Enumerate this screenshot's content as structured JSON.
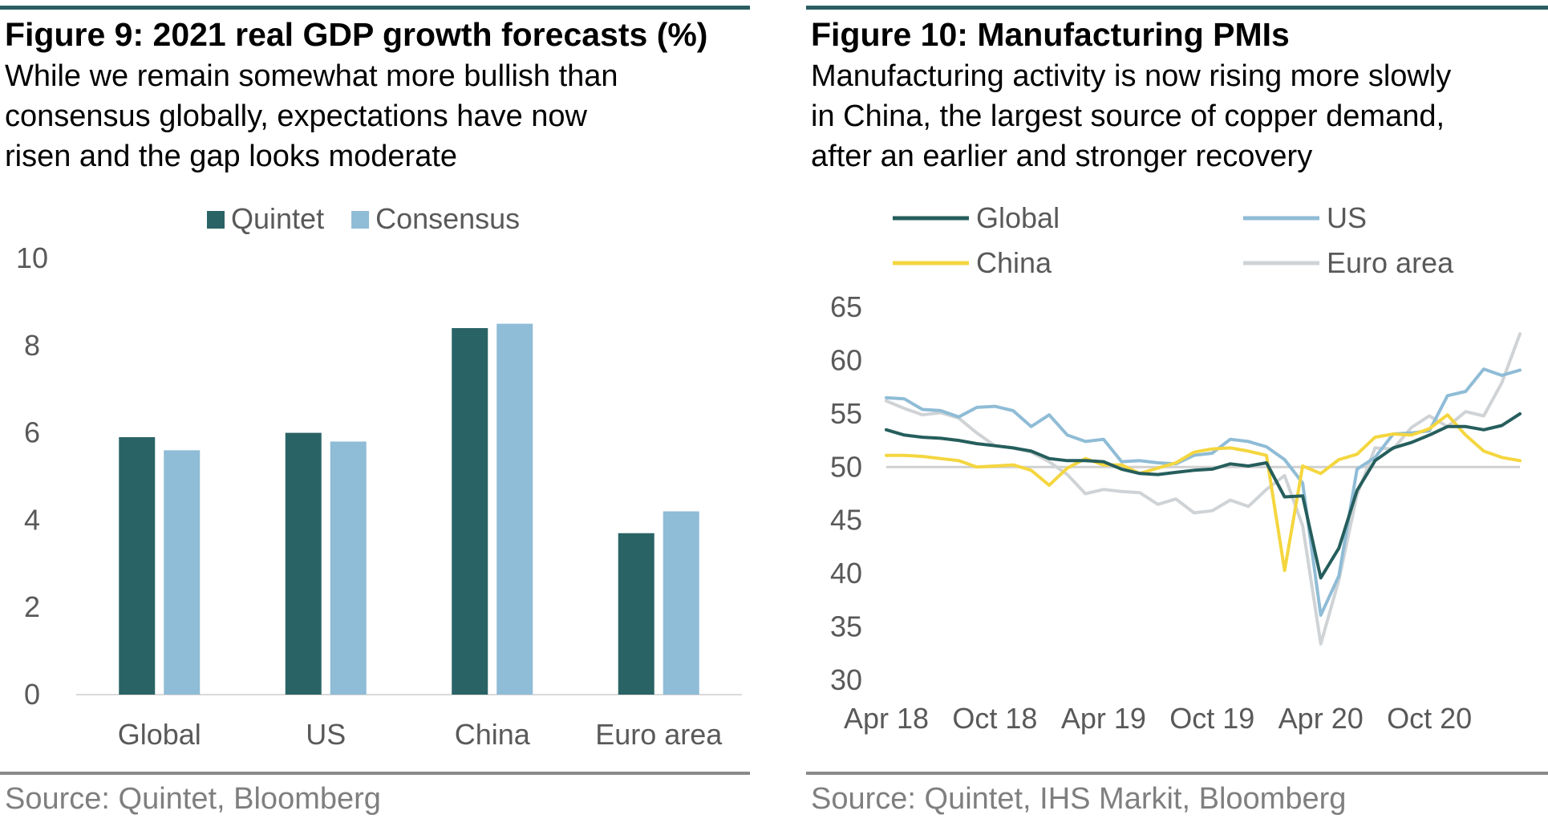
{
  "left": {
    "title": "Figure 9: 2021 real GDP growth forecasts (%)",
    "subtitle_lines": [
      "While we remain somewhat more bullish than",
      "consensus globally, expectations have now",
      "risen and the gap looks moderate"
    ],
    "source": "Source: Quintet, Bloomberg"
  },
  "right": {
    "title": "Figure 10: Manufacturing PMIs",
    "subtitle_lines": [
      "Manufacturing activity is now rising more slowly",
      "in China, the largest source of copper demand,",
      "after an earlier and stronger recovery"
    ],
    "source": "Source: Quintet, IHS Markit, Bloomberg"
  },
  "colors": {
    "quintet": "#2a6366",
    "consensus": "#8fbcd6",
    "global": "#255e5c",
    "us": "#8fbcd6",
    "china": "#f4d63f",
    "euro": "#cfd3d6",
    "axis": "#d9d9d9",
    "ref50": "#d0d0d0"
  },
  "chart_data": [
    {
      "type": "bar",
      "categories": [
        "Global",
        "US",
        "China",
        "Euro area"
      ],
      "series": [
        {
          "name": "Quintet",
          "values": [
            5.9,
            6.0,
            8.4,
            3.7
          ]
        },
        {
          "name": "Consensus",
          "values": [
            5.6,
            5.8,
            8.5,
            4.2
          ]
        }
      ],
      "yticks": [
        "10",
        "8",
        "6",
        "4",
        "2",
        "0"
      ],
      "ylim": [
        0,
        10
      ],
      "legend": "top-center"
    },
    {
      "type": "line",
      "x_start": "2018-04",
      "x": [
        "Apr 18",
        "May 18",
        "Jun 18",
        "Jul 18",
        "Aug 18",
        "Sep 18",
        "Oct 18",
        "Nov 18",
        "Dec 18",
        "Jan 19",
        "Feb 19",
        "Mar 19",
        "Apr 19",
        "May 19",
        "Jun 19",
        "Jul 19",
        "Aug 19",
        "Sep 19",
        "Oct 19",
        "Nov 19",
        "Dec 19",
        "Jan 20",
        "Feb 20",
        "Mar 20",
        "Apr 20",
        "May 20",
        "Jun 20",
        "Jul 20",
        "Aug 20",
        "Sep 20",
        "Oct 20",
        "Nov 20",
        "Dec 20",
        "Jan 21",
        "Feb 21",
        "Mar 21"
      ],
      "xticks": [
        "Apr 18",
        "Oct 18",
        "Apr 19",
        "Oct 19",
        "Apr 20",
        "Oct 20"
      ],
      "yticks": [
        "65",
        "60",
        "55",
        "50",
        "45",
        "40",
        "35",
        "30"
      ],
      "ylim": [
        30,
        65
      ],
      "reference_line": 50,
      "legend": "top",
      "series": [
        {
          "name": "Global",
          "values": [
            53.5,
            53.0,
            52.8,
            52.7,
            52.5,
            52.2,
            52.0,
            51.8,
            51.5,
            50.8,
            50.6,
            50.6,
            50.5,
            49.8,
            49.4,
            49.3,
            49.5,
            49.7,
            49.8,
            50.3,
            50.1,
            50.4,
            47.2,
            47.3,
            39.6,
            42.4,
            47.8,
            50.6,
            51.8,
            52.3,
            53.0,
            53.8,
            53.8,
            53.5,
            53.9,
            55.0
          ]
        },
        {
          "name": "US",
          "values": [
            56.5,
            56.4,
            55.4,
            55.3,
            54.7,
            55.6,
            55.7,
            55.3,
            53.8,
            54.9,
            53.0,
            52.4,
            52.6,
            50.5,
            50.6,
            50.4,
            50.3,
            51.1,
            51.3,
            52.6,
            52.4,
            51.9,
            50.7,
            48.5,
            36.1,
            39.8,
            49.8,
            50.9,
            53.1,
            53.2,
            53.4,
            56.7,
            57.1,
            59.2,
            58.6,
            59.1
          ]
        },
        {
          "name": "China",
          "values": [
            51.1,
            51.1,
            51.0,
            50.8,
            50.6,
            50.0,
            50.1,
            50.2,
            49.7,
            48.3,
            49.9,
            50.8,
            50.2,
            50.2,
            49.4,
            49.9,
            50.4,
            51.4,
            51.7,
            51.8,
            51.5,
            51.1,
            40.3,
            50.1,
            49.4,
            50.7,
            51.2,
            52.8,
            53.1,
            53.0,
            53.6,
            54.9,
            53.0,
            51.5,
            50.9,
            50.6
          ]
        },
        {
          "name": "Euro area",
          "values": [
            56.2,
            55.5,
            54.9,
            55.1,
            54.6,
            53.2,
            52.0,
            51.8,
            51.4,
            50.5,
            49.3,
            47.5,
            47.9,
            47.7,
            47.6,
            46.5,
            47.0,
            45.7,
            45.9,
            46.9,
            46.3,
            47.9,
            49.2,
            44.5,
            33.4,
            39.4,
            47.4,
            51.8,
            51.7,
            53.7,
            54.8,
            53.8,
            55.2,
            54.8,
            57.9,
            62.5
          ]
        }
      ]
    }
  ]
}
